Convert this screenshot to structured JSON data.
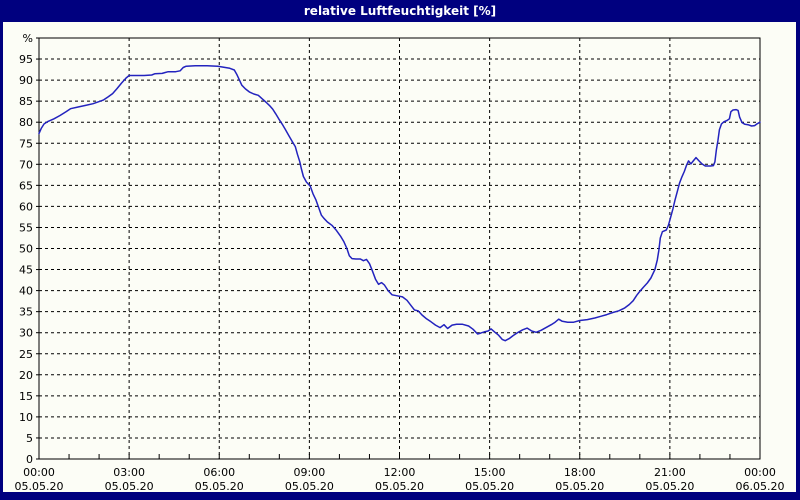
{
  "window": {
    "title": "relative Luftfeuchtigkeit [%]"
  },
  "colors": {
    "frame": "#00007F",
    "titlebar_bg": "#00007F",
    "title_text": "#FFFFFF",
    "content_bg": "#FCFDF6",
    "line": "#2323BE",
    "grid": "#000000",
    "axis": "#000000",
    "label": "#000000"
  },
  "chart_data": {
    "type": "line",
    "title": "relative Luftfeuchtigkeit [%]",
    "xlabel": "",
    "ylabel": "%",
    "ylim": [
      0,
      100
    ],
    "xlim_hours": [
      0,
      24
    ],
    "grid": "dashed",
    "legend": "none",
    "yticks": [
      0,
      5,
      10,
      15,
      20,
      25,
      30,
      35,
      40,
      45,
      50,
      55,
      60,
      65,
      70,
      75,
      80,
      85,
      90,
      95
    ],
    "minor_tick_interval_hours": 1,
    "xticks": [
      {
        "hour": 0,
        "time": "00:00",
        "date": "05.05.20"
      },
      {
        "hour": 3,
        "time": "03:00",
        "date": "05.05.20"
      },
      {
        "hour": 6,
        "time": "06:00",
        "date": "05.05.20"
      },
      {
        "hour": 9,
        "time": "09:00",
        "date": "05.05.20"
      },
      {
        "hour": 12,
        "time": "12:00",
        "date": "05.05.20"
      },
      {
        "hour": 15,
        "time": "15:00",
        "date": "05.05.20"
      },
      {
        "hour": 18,
        "time": "18:00",
        "date": "05.05.20"
      },
      {
        "hour": 21,
        "time": "21:00",
        "date": "05.05.20"
      },
      {
        "hour": 24,
        "time": "00:00",
        "date": "06.05.20"
      }
    ],
    "series": [
      {
        "name": "relative Luftfeuchtigkeit",
        "unit": "%",
        "points": [
          [
            0.0,
            77.3
          ],
          [
            0.08,
            78.6
          ],
          [
            0.17,
            79.6
          ],
          [
            0.3,
            80.2
          ],
          [
            0.5,
            80.8
          ],
          [
            0.7,
            81.6
          ],
          [
            0.9,
            82.5
          ],
          [
            1.05,
            83.2
          ],
          [
            1.3,
            83.6
          ],
          [
            1.55,
            84.0
          ],
          [
            1.8,
            84.4
          ],
          [
            2.0,
            84.9
          ],
          [
            2.15,
            85.3
          ],
          [
            2.3,
            86.0
          ],
          [
            2.45,
            86.8
          ],
          [
            2.6,
            88.0
          ],
          [
            2.75,
            89.3
          ],
          [
            2.9,
            90.5
          ],
          [
            3.0,
            91.1
          ],
          [
            3.2,
            91.1
          ],
          [
            3.5,
            91.1
          ],
          [
            3.75,
            91.2
          ],
          [
            3.85,
            91.5
          ],
          [
            4.1,
            91.6
          ],
          [
            4.2,
            91.8
          ],
          [
            4.3,
            92.0
          ],
          [
            4.55,
            92.0
          ],
          [
            4.7,
            92.2
          ],
          [
            4.8,
            93.0
          ],
          [
            4.9,
            93.3
          ],
          [
            5.2,
            93.4
          ],
          [
            5.6,
            93.4
          ],
          [
            5.95,
            93.3
          ],
          [
            6.1,
            93.1
          ],
          [
            6.35,
            92.8
          ],
          [
            6.5,
            92.4
          ],
          [
            6.58,
            91.4
          ],
          [
            6.66,
            90.2
          ],
          [
            6.75,
            88.8
          ],
          [
            6.87,
            87.9
          ],
          [
            7.0,
            87.2
          ],
          [
            7.15,
            86.7
          ],
          [
            7.3,
            86.4
          ],
          [
            7.42,
            85.6
          ],
          [
            7.55,
            84.8
          ],
          [
            7.67,
            84.0
          ],
          [
            7.78,
            83.1
          ],
          [
            7.88,
            82.0
          ],
          [
            7.98,
            80.8
          ],
          [
            8.1,
            79.5
          ],
          [
            8.2,
            78.3
          ],
          [
            8.32,
            76.8
          ],
          [
            8.43,
            75.4
          ],
          [
            8.53,
            74.2
          ],
          [
            8.6,
            72.4
          ],
          [
            8.68,
            70.6
          ],
          [
            8.73,
            69.0
          ],
          [
            8.8,
            67.1
          ],
          [
            8.9,
            65.8
          ],
          [
            9.03,
            64.8
          ],
          [
            9.12,
            63.0
          ],
          [
            9.22,
            61.5
          ],
          [
            9.32,
            59.5
          ],
          [
            9.4,
            57.9
          ],
          [
            9.48,
            57.2
          ],
          [
            9.6,
            56.3
          ],
          [
            9.75,
            55.5
          ],
          [
            9.9,
            54.3
          ],
          [
            10.05,
            52.8
          ],
          [
            10.15,
            51.6
          ],
          [
            10.25,
            50.0
          ],
          [
            10.33,
            48.3
          ],
          [
            10.42,
            47.6
          ],
          [
            10.55,
            47.5
          ],
          [
            10.7,
            47.5
          ],
          [
            10.8,
            47.1
          ],
          [
            10.9,
            47.4
          ],
          [
            11.0,
            46.4
          ],
          [
            11.1,
            44.6
          ],
          [
            11.2,
            42.7
          ],
          [
            11.3,
            41.5
          ],
          [
            11.4,
            41.9
          ],
          [
            11.5,
            41.3
          ],
          [
            11.62,
            40.0
          ],
          [
            11.75,
            39.0
          ],
          [
            11.9,
            38.8
          ],
          [
            12.1,
            38.5
          ],
          [
            12.25,
            37.7
          ],
          [
            12.4,
            36.3
          ],
          [
            12.5,
            35.4
          ],
          [
            12.62,
            35.2
          ],
          [
            12.75,
            34.2
          ],
          [
            12.9,
            33.3
          ],
          [
            13.05,
            32.6
          ],
          [
            13.2,
            31.8
          ],
          [
            13.35,
            31.2
          ],
          [
            13.48,
            31.9
          ],
          [
            13.6,
            31.0
          ],
          [
            13.75,
            31.8
          ],
          [
            13.9,
            32.0
          ],
          [
            14.1,
            32.0
          ],
          [
            14.3,
            31.6
          ],
          [
            14.45,
            30.8
          ],
          [
            14.6,
            29.7
          ],
          [
            14.7,
            29.9
          ],
          [
            14.82,
            30.2
          ],
          [
            14.95,
            30.4
          ],
          [
            15.05,
            30.9
          ],
          [
            15.18,
            30.1
          ],
          [
            15.3,
            29.4
          ],
          [
            15.42,
            28.4
          ],
          [
            15.52,
            28.1
          ],
          [
            15.65,
            28.6
          ],
          [
            15.78,
            29.3
          ],
          [
            15.95,
            30.1
          ],
          [
            16.1,
            30.7
          ],
          [
            16.25,
            31.1
          ],
          [
            16.4,
            30.4
          ],
          [
            16.55,
            30.1
          ],
          [
            16.72,
            30.6
          ],
          [
            16.9,
            31.3
          ],
          [
            17.05,
            31.9
          ],
          [
            17.18,
            32.5
          ],
          [
            17.3,
            33.2
          ],
          [
            17.42,
            32.7
          ],
          [
            17.6,
            32.5
          ],
          [
            17.8,
            32.5
          ],
          [
            18.0,
            32.9
          ],
          [
            18.25,
            33.1
          ],
          [
            18.5,
            33.5
          ],
          [
            18.7,
            33.9
          ],
          [
            18.9,
            34.3
          ],
          [
            19.1,
            34.8
          ],
          [
            19.3,
            35.2
          ],
          [
            19.5,
            35.9
          ],
          [
            19.65,
            36.7
          ],
          [
            19.78,
            37.6
          ],
          [
            19.9,
            38.9
          ],
          [
            20.0,
            39.8
          ],
          [
            20.12,
            40.8
          ],
          [
            20.25,
            41.8
          ],
          [
            20.37,
            43.0
          ],
          [
            20.5,
            45.0
          ],
          [
            20.58,
            47.3
          ],
          [
            20.63,
            49.5
          ],
          [
            20.68,
            52.5
          ],
          [
            20.75,
            54.0
          ],
          [
            20.88,
            54.4
          ],
          [
            20.95,
            55.5
          ],
          [
            21.02,
            57.3
          ],
          [
            21.1,
            59.4
          ],
          [
            21.17,
            61.5
          ],
          [
            21.25,
            63.6
          ],
          [
            21.32,
            65.5
          ],
          [
            21.4,
            67.0
          ],
          [
            21.48,
            68.3
          ],
          [
            21.55,
            69.7
          ],
          [
            21.62,
            70.8
          ],
          [
            21.7,
            70.1
          ],
          [
            21.78,
            70.8
          ],
          [
            21.87,
            71.6
          ],
          [
            21.97,
            70.8
          ],
          [
            22.07,
            70.1
          ],
          [
            22.18,
            69.6
          ],
          [
            22.35,
            69.6
          ],
          [
            22.45,
            69.7
          ],
          [
            22.5,
            70.6
          ],
          [
            22.55,
            73.5
          ],
          [
            22.6,
            75.6
          ],
          [
            22.65,
            78.2
          ],
          [
            22.72,
            79.6
          ],
          [
            22.8,
            80.1
          ],
          [
            22.9,
            80.4
          ],
          [
            22.98,
            80.8
          ],
          [
            23.03,
            82.5
          ],
          [
            23.1,
            82.9
          ],
          [
            23.2,
            83.0
          ],
          [
            23.27,
            82.8
          ],
          [
            23.32,
            81.2
          ],
          [
            23.4,
            79.9
          ],
          [
            23.5,
            79.5
          ],
          [
            23.6,
            79.4
          ],
          [
            23.72,
            79.1
          ],
          [
            23.82,
            79.2
          ],
          [
            23.9,
            79.6
          ],
          [
            24.0,
            80.0
          ]
        ]
      }
    ]
  }
}
